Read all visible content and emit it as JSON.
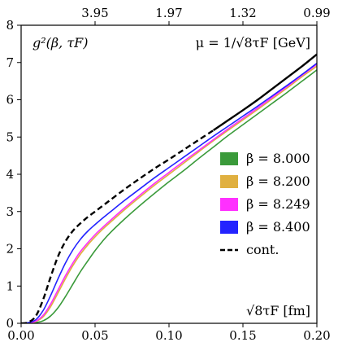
{
  "chart_data": {
    "type": "line",
    "xlim": [
      0.0,
      0.2
    ],
    "ylim": [
      0,
      8
    ],
    "x_ticks": [
      0.0,
      0.05,
      0.1,
      0.15,
      0.2
    ],
    "x_tick_labels": [
      "0.00",
      "0.05",
      "0.10",
      "0.15",
      "0.20"
    ],
    "y_ticks": [
      0,
      1,
      2,
      3,
      4,
      5,
      6,
      7,
      8
    ],
    "y_tick_labels": [
      "0",
      "1",
      "2",
      "3",
      "4",
      "5",
      "6",
      "7",
      "8"
    ],
    "top_ticks": [
      0.05,
      0.1,
      0.15,
      0.2
    ],
    "top_tick_labels": [
      "3.95",
      "1.97",
      "1.32",
      "0.99"
    ],
    "top_left_label": "g²(β, τF)",
    "top_right_label": "μ = 1/√8τF [GeV]",
    "xlabel": "√8τF [fm]",
    "legend_position": "center-right",
    "series": [
      {
        "name": "β = 8.000",
        "color": "#3a9a3a",
        "style": "solid",
        "x": [
          0.0,
          0.005,
          0.01,
          0.015,
          0.02,
          0.025,
          0.03,
          0.035,
          0.04,
          0.045,
          0.05,
          0.055,
          0.06,
          0.07,
          0.08,
          0.09,
          0.1,
          0.11,
          0.12,
          0.13,
          0.14,
          0.15,
          0.16,
          0.17,
          0.18,
          0.19,
          0.2
        ],
        "y": [
          0.0,
          0.0,
          0.02,
          0.07,
          0.2,
          0.42,
          0.72,
          1.05,
          1.38,
          1.67,
          1.95,
          2.2,
          2.42,
          2.8,
          3.15,
          3.48,
          3.8,
          4.1,
          4.42,
          4.73,
          5.04,
          5.33,
          5.62,
          5.91,
          6.2,
          6.5,
          6.8
        ]
      },
      {
        "name": "β = 8.200",
        "color": "#e0b040",
        "style": "solid",
        "x": [
          0.0,
          0.005,
          0.01,
          0.015,
          0.02,
          0.025,
          0.03,
          0.035,
          0.04,
          0.045,
          0.05,
          0.055,
          0.06,
          0.07,
          0.08,
          0.09,
          0.1,
          0.11,
          0.12,
          0.13,
          0.14,
          0.15,
          0.16,
          0.17,
          0.18,
          0.19,
          0.2
        ],
        "y": [
          0.0,
          0.01,
          0.05,
          0.18,
          0.45,
          0.82,
          1.2,
          1.55,
          1.85,
          2.1,
          2.32,
          2.52,
          2.7,
          3.05,
          3.38,
          3.7,
          4.0,
          4.3,
          4.6,
          4.9,
          5.18,
          5.46,
          5.74,
          6.03,
          6.32,
          6.62,
          6.9
        ]
      },
      {
        "name": "β = 8.249",
        "color": "#ff30ff",
        "style": "solid",
        "x": [
          0.0,
          0.005,
          0.01,
          0.015,
          0.02,
          0.025,
          0.03,
          0.035,
          0.04,
          0.045,
          0.05,
          0.055,
          0.06,
          0.07,
          0.08,
          0.09,
          0.1,
          0.11,
          0.12,
          0.13,
          0.14,
          0.15,
          0.16,
          0.17,
          0.18,
          0.19,
          0.2
        ],
        "y": [
          0.0,
          0.01,
          0.06,
          0.22,
          0.52,
          0.9,
          1.28,
          1.62,
          1.92,
          2.16,
          2.38,
          2.57,
          2.75,
          3.1,
          3.43,
          3.75,
          4.05,
          4.35,
          4.64,
          4.93,
          5.22,
          5.5,
          5.78,
          6.07,
          6.36,
          6.66,
          6.95
        ]
      },
      {
        "name": "β = 8.400",
        "color": "#2323ff",
        "style": "solid",
        "x": [
          0.0,
          0.005,
          0.01,
          0.015,
          0.02,
          0.025,
          0.03,
          0.035,
          0.04,
          0.045,
          0.05,
          0.055,
          0.06,
          0.07,
          0.08,
          0.09,
          0.1,
          0.11,
          0.12,
          0.13,
          0.14,
          0.15,
          0.16,
          0.17,
          0.18,
          0.19,
          0.2
        ],
        "y": [
          0.0,
          0.02,
          0.1,
          0.35,
          0.75,
          1.2,
          1.62,
          1.97,
          2.25,
          2.47,
          2.65,
          2.82,
          2.98,
          3.3,
          3.6,
          3.9,
          4.18,
          4.46,
          4.74,
          5.02,
          5.29,
          5.56,
          5.83,
          6.11,
          6.39,
          6.68,
          6.98
        ]
      },
      {
        "name": "cont.",
        "color": "#000000",
        "style": "dashed",
        "solid_from_x": 0.13,
        "x": [
          0.0,
          0.005,
          0.01,
          0.015,
          0.02,
          0.025,
          0.03,
          0.035,
          0.04,
          0.045,
          0.05,
          0.055,
          0.06,
          0.07,
          0.08,
          0.09,
          0.1,
          0.11,
          0.12,
          0.13,
          0.14,
          0.15,
          0.16,
          0.17,
          0.18,
          0.19,
          0.2
        ],
        "y": [
          0.0,
          0.03,
          0.2,
          0.65,
          1.25,
          1.8,
          2.2,
          2.48,
          2.68,
          2.85,
          3.0,
          3.15,
          3.3,
          3.6,
          3.88,
          4.15,
          4.4,
          4.66,
          4.92,
          5.18,
          5.45,
          5.72,
          6.0,
          6.3,
          6.6,
          6.9,
          7.22
        ]
      }
    ]
  }
}
